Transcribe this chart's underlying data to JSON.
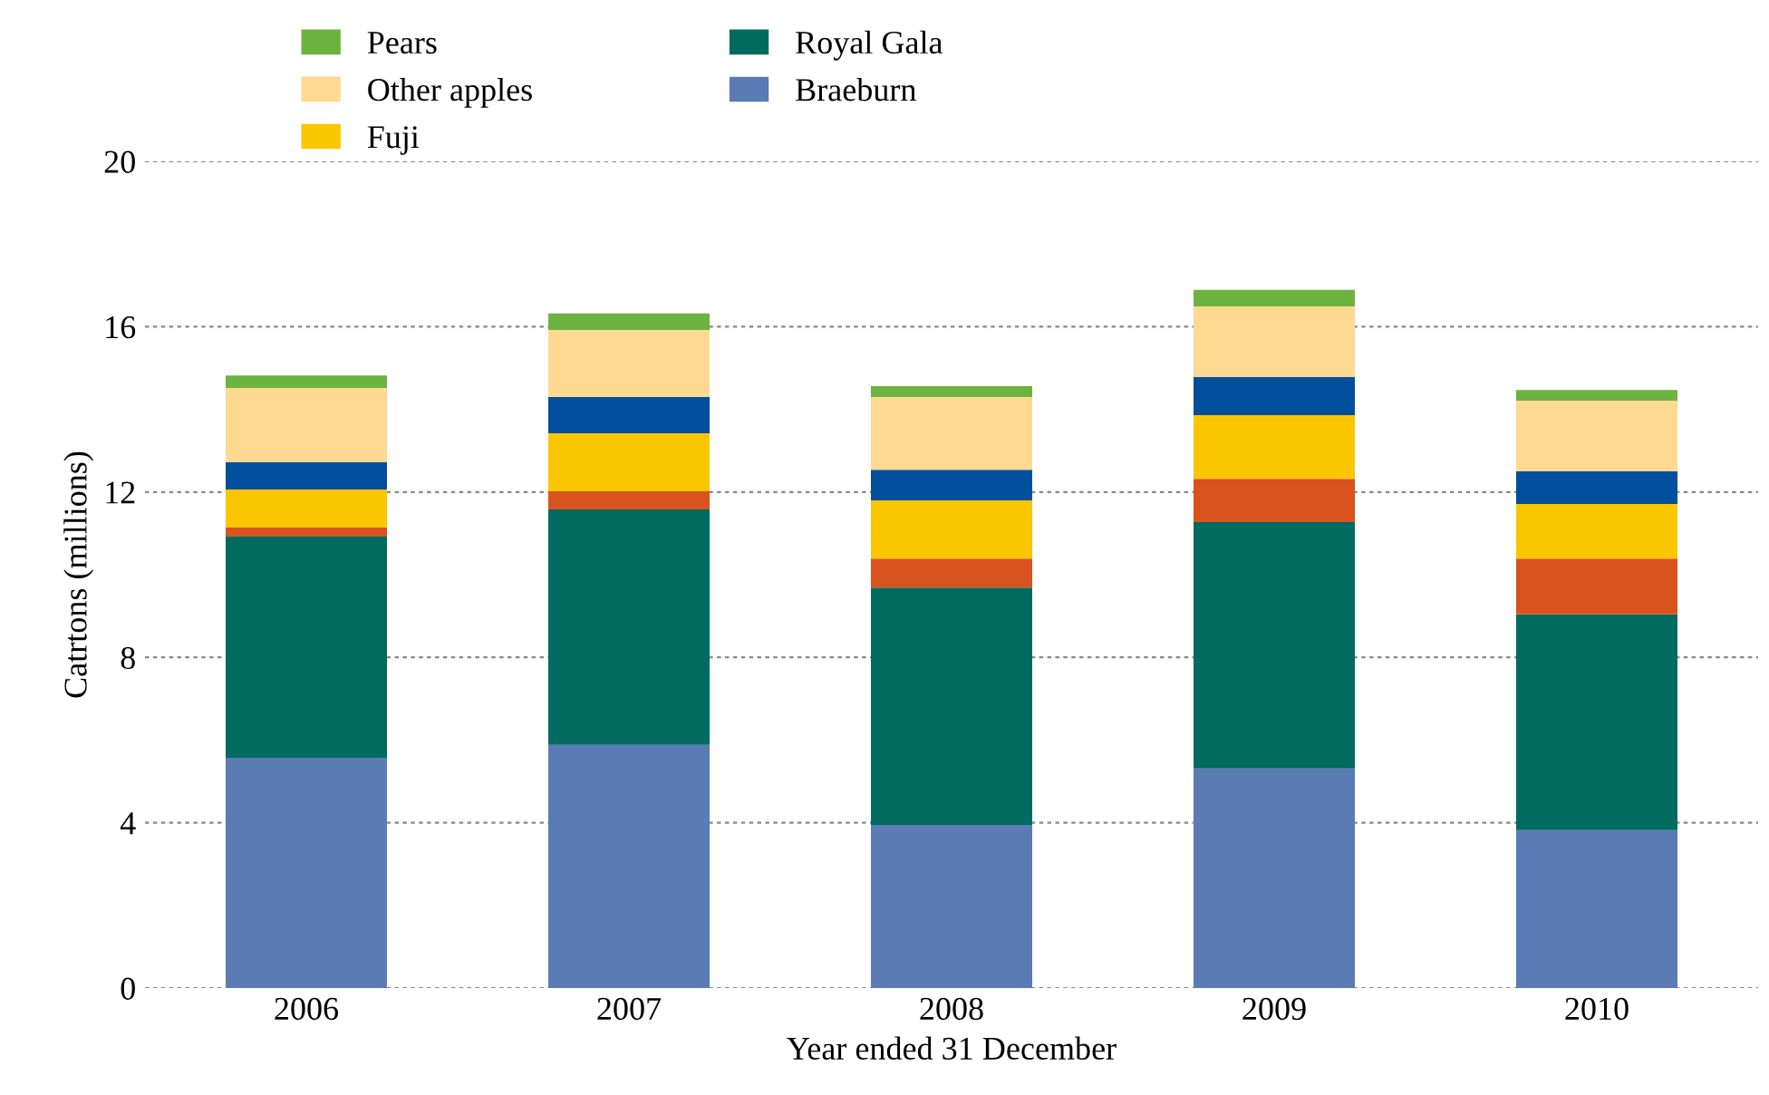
{
  "chart_data": {
    "type": "bar",
    "stacked": true,
    "xlabel": "Year ended 31 December",
    "ylabel": "Catrtons (millions)",
    "categories": [
      "2006",
      "2007",
      "2008",
      "2009",
      "2010"
    ],
    "series": [
      {
        "name": "Braeburn",
        "color": "#5b7bb5",
        "values": [
          5.57,
          5.88,
          3.95,
          5.31,
          3.82
        ]
      },
      {
        "name": "Royal Gala",
        "color": "#006b5f",
        "values": [
          5.35,
          5.7,
          5.74,
          5.96,
          5.22
        ]
      },
      {
        "color": "#d9531e",
        "values": [
          0.22,
          0.44,
          0.7,
          1.05,
          1.35
        ]
      },
      {
        "name": "Fuji",
        "color": "#f9c600",
        "values": [
          0.92,
          1.4,
          1.41,
          1.54,
          1.32
        ]
      },
      {
        "color": "#004f9f",
        "values": [
          0.66,
          0.88,
          0.74,
          0.92,
          0.79
        ]
      },
      {
        "name": "Other apples",
        "color": "#fdd992",
        "values": [
          1.8,
          1.62,
          1.76,
          1.71,
          1.71
        ]
      },
      {
        "name": "Pears",
        "color": "#6cb33f",
        "values": [
          0.3,
          0.4,
          0.26,
          0.4,
          0.26
        ]
      }
    ],
    "ylim": [
      0,
      20
    ],
    "yticks": [
      0,
      4,
      8,
      12,
      16,
      20
    ],
    "grid": "y",
    "legend": "top left"
  }
}
